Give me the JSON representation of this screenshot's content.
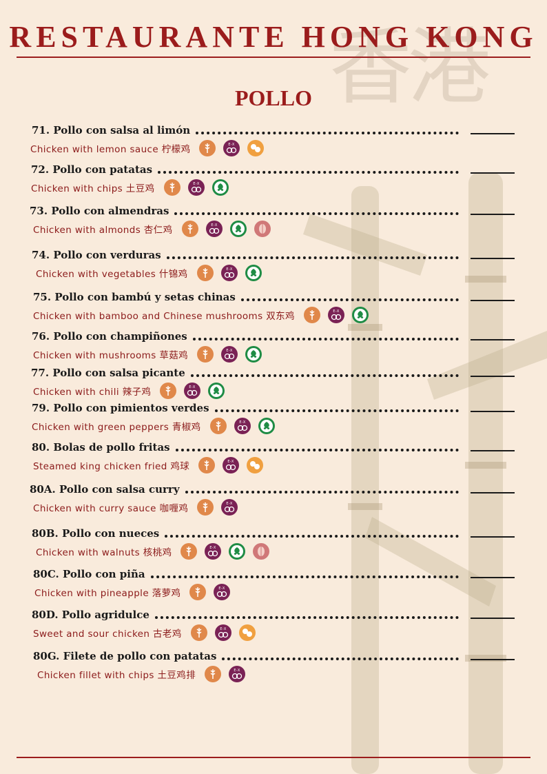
{
  "header": {
    "title": "RESTAURANTE HONG KONG",
    "watermark": "香港"
  },
  "section": {
    "title": "POLLO"
  },
  "items": [
    {
      "name": "71. Pollo con salsa al limón",
      "english": "Chicken with lemon sauce 柠檬鸡"
    },
    {
      "name": "72. Pollo con patatas",
      "english": "Chicken with chips 土豆鸡"
    },
    {
      "name": "73. Pollo con almendras",
      "english": "Chicken with almonds 杏仁鸡"
    },
    {
      "name": "74. Pollo con verduras",
      "english": "Chicken with vegetables 什锦鸡"
    },
    {
      "name": "75. Pollo con bambú y setas chinas",
      "english": "Chicken with bamboo and Chinese mushrooms 双东鸡"
    },
    {
      "name": "76. Pollo con champiñones",
      "english": "Chicken with mushrooms 草菇鸡"
    },
    {
      "name": "77. Pollo con salsa picante",
      "english": "Chicken with chili 辣子鸡"
    },
    {
      "name": "79. Pollo con pimientos verdes",
      "english": "Chicken with green peppers 青椒鸡"
    },
    {
      "name": "80. Bolas de pollo fritas",
      "english": "Steamed king chicken fried 鸡球"
    },
    {
      "name": "80A. Pollo con salsa curry",
      "english": "Chicken with curry sauce 咖喱鸡"
    },
    {
      "name": "80B. Pollo con nueces",
      "english": "Chicken with walnuts 核桃鸡"
    },
    {
      "name": "80C. Pollo con piña",
      "english": "Chicken with pineapple 落萝鸡"
    },
    {
      "name": "80D. Pollo agridulce",
      "english": "Sweet and sour chicken 古老鸡"
    },
    {
      "name": "80G. Filete de pollo con patatas",
      "english": "Chicken fillet with chips 土豆鸡排"
    }
  ]
}
